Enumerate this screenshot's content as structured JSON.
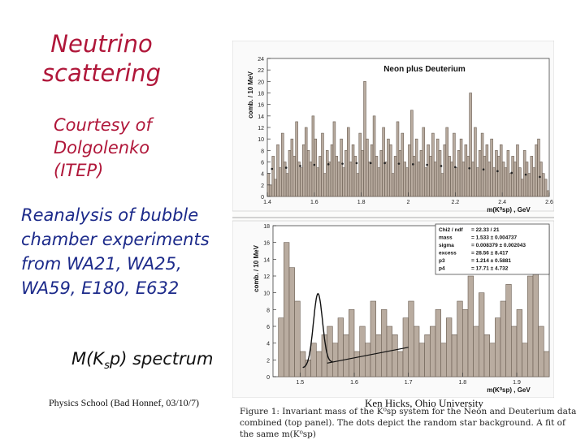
{
  "slide": {
    "title": "Neutrino scattering",
    "credit": "Courtesy of Dolgolenko (ITEP)",
    "body": "Reanalysis of bubble chamber experiments from WA21, WA25, WA59, E180, E632",
    "spectrum_label_main": "M(K",
    "spectrum_label_sub": "s",
    "spectrum_label_tail": "p) spectrum",
    "footer_left": "Physics School (Bad Honnef, 03/10/7)",
    "footer_right": "Ken Hicks, Ohio University",
    "caption": "Figure 1: Invariant mass of the K⁰sp system for the Neon and Deuterium data combined (top panel). The dots depict the random star background. A fit of the same m(K⁰sp)"
  },
  "colors": {
    "title": "#b0173a",
    "body": "#1c2a8a",
    "bar_fill": "#b9aca0",
    "bar_stroke": "#6a5d52",
    "fit": "#111111"
  },
  "chart_data": [
    {
      "type": "bar",
      "title": "Neon plus Deuterium",
      "xlabel": "m(K⁰sp) , GeV",
      "ylabel": "comb. / 10 MeV",
      "xlim": [
        1.4,
        2.6
      ],
      "ylim": [
        0,
        24
      ],
      "xticks": [
        "1.4",
        "1.6",
        "1.8",
        "2",
        "2.2",
        "2.4",
        "2.6"
      ],
      "yticks": [
        "0",
        "2",
        "4",
        "6",
        "8",
        "10",
        "12",
        "14",
        "16",
        "18",
        "20",
        "22",
        "24"
      ],
      "bin_width": 0.01,
      "x_start": 1.4,
      "values": [
        4,
        2,
        7,
        3,
        9,
        5,
        11,
        6,
        4,
        8,
        10,
        7,
        13,
        6,
        5,
        9,
        12,
        8,
        6,
        14,
        10,
        5,
        7,
        11,
        4,
        8,
        6,
        9,
        13,
        7,
        6,
        10,
        5,
        8,
        12,
        6,
        9,
        7,
        4,
        11,
        8,
        20,
        10,
        6,
        9,
        14,
        7,
        5,
        8,
        12,
        6,
        10,
        9,
        4,
        7,
        13,
        8,
        11,
        6,
        5,
        9,
        15,
        7,
        10,
        6,
        8,
        12,
        5,
        9,
        7,
        11,
        6,
        10,
        8,
        4,
        9,
        12,
        7,
        6,
        11,
        5,
        8,
        10,
        6,
        9,
        7,
        18,
        6,
        12,
        5,
        8,
        11,
        7,
        9,
        6,
        10,
        5,
        8,
        7,
        9,
        6,
        5,
        8,
        4,
        7,
        6,
        9,
        5,
        3,
        8,
        6,
        4,
        7,
        5,
        9,
        10,
        6,
        4,
        3,
        1
      ],
      "background_dots": [
        4.8,
        5.0,
        5.3,
        5.5,
        5.6,
        5.7,
        5.8,
        5.8,
        5.8,
        5.7,
        5.6,
        5.5,
        5.3,
        5.1,
        4.9,
        4.7,
        4.4,
        4.1,
        3.8,
        3.4
      ],
      "background_dots_x": [
        1.42,
        1.48,
        1.54,
        1.6,
        1.66,
        1.72,
        1.78,
        1.84,
        1.9,
        1.96,
        2.02,
        2.08,
        2.14,
        2.2,
        2.26,
        2.32,
        2.38,
        2.44,
        2.5,
        2.56
      ]
    },
    {
      "type": "bar",
      "xlabel": "m(K⁰sp) , GeV",
      "ylabel": "comb. / 10 MeV",
      "xlim": [
        1.45,
        1.96
      ],
      "ylim": [
        0,
        18
      ],
      "xticks": [
        "1.5",
        "1.6",
        "1.7",
        "1.8",
        "1.9"
      ],
      "yticks": [
        "0",
        "2",
        "4",
        "6",
        "8",
        "10",
        "12",
        "14",
        "16",
        "18"
      ],
      "bin_width": 0.01,
      "x_start": 1.45,
      "values": [
        0,
        7,
        16,
        13,
        9,
        3,
        2,
        4,
        3,
        5,
        6,
        4,
        7,
        5,
        8,
        3,
        6,
        4,
        9,
        5,
        8,
        6,
        5,
        3,
        7,
        9,
        6,
        4,
        5,
        6,
        8,
        4,
        7,
        5,
        9,
        8,
        12,
        6,
        10,
        5,
        4,
        7,
        9,
        11,
        6,
        8,
        4,
        12,
        13,
        6,
        3
      ],
      "fit_stats": [
        {
          "label": "Chi2 / ndf",
          "value": "= 22.33 / 21"
        },
        {
          "label": "mass",
          "value": "= 1.533 ± 0.004737"
        },
        {
          "label": "sigma",
          "value": "= 0.008379 ± 0.002043"
        },
        {
          "label": "excess",
          "value": "= 28.56 ± 8.417"
        },
        {
          "label": "p3",
          "value": "= 1.214 ± 0.5881"
        },
        {
          "label": "p4",
          "value": "= 17.71 ± 4.732"
        }
      ],
      "fit_curve_peak": {
        "mean": 1.533,
        "sigma": 0.008379,
        "amplitude": 8.5
      },
      "fit_curve_background": [
        [
          1.525,
          1.3
        ],
        [
          1.7,
          3.5
        ]
      ]
    }
  ]
}
